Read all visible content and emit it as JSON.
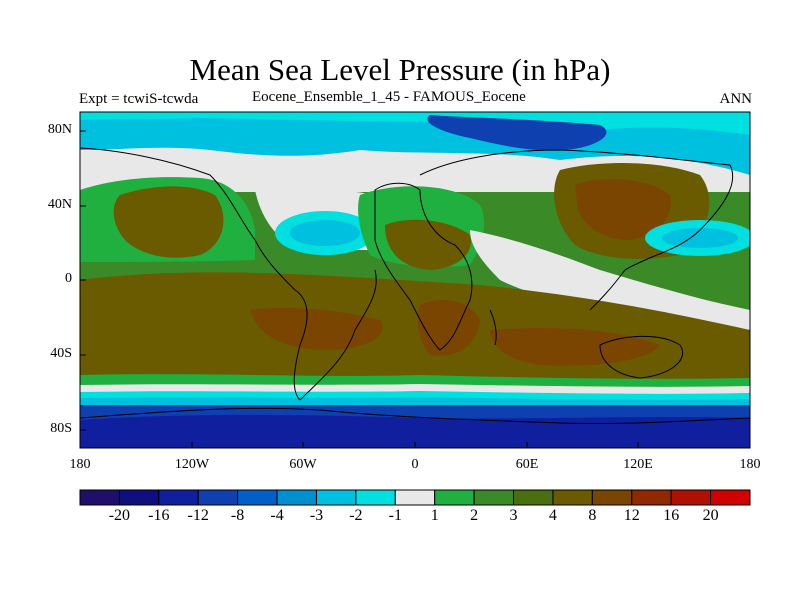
{
  "title": "Mean Sea Level Pressure (in hPa)",
  "left_label": "Expt = tcwiS-tcwda",
  "center_label": "Eocene_Ensemble_1_45 - FAMOUS_Eocene",
  "right_label": "ANN",
  "axes": {
    "y_ticks": [
      "80N",
      "40N",
      "0",
      "40S",
      "80S"
    ],
    "x_ticks": [
      "180",
      "120W",
      "60W",
      "0",
      "60E",
      "120E",
      "180"
    ]
  },
  "colorbar": {
    "colors": [
      "#200f6a",
      "#0f0f80",
      "#0f1f9e",
      "#0f40b0",
      "#0060c8",
      "#0090d0",
      "#00c0e0",
      "#00e0e0",
      "#e8e8e8",
      "#1fb040",
      "#3a8a28",
      "#4a6f10",
      "#6a5a00",
      "#7a4500",
      "#902800",
      "#b01000",
      "#d00000"
    ],
    "labels": [
      "-20",
      "-16",
      "-12",
      "-8",
      "-4",
      "-3",
      "-2",
      "-1",
      "1",
      "2",
      "3",
      "4",
      "8",
      "12",
      "16",
      "20"
    ]
  },
  "map": {
    "colors": {
      "deep_blue": "#0f1f9e",
      "blue": "#0f40b0",
      "cyan": "#00c0e0",
      "light_cyan": "#00e0e0",
      "grey": "#e8e8e8",
      "green": "#1fb040",
      "dark_green": "#3a8a28",
      "olive": "#4a6f10",
      "brown": "#6a5a00",
      "rust": "#7a4500",
      "red_brown": "#902800"
    }
  }
}
